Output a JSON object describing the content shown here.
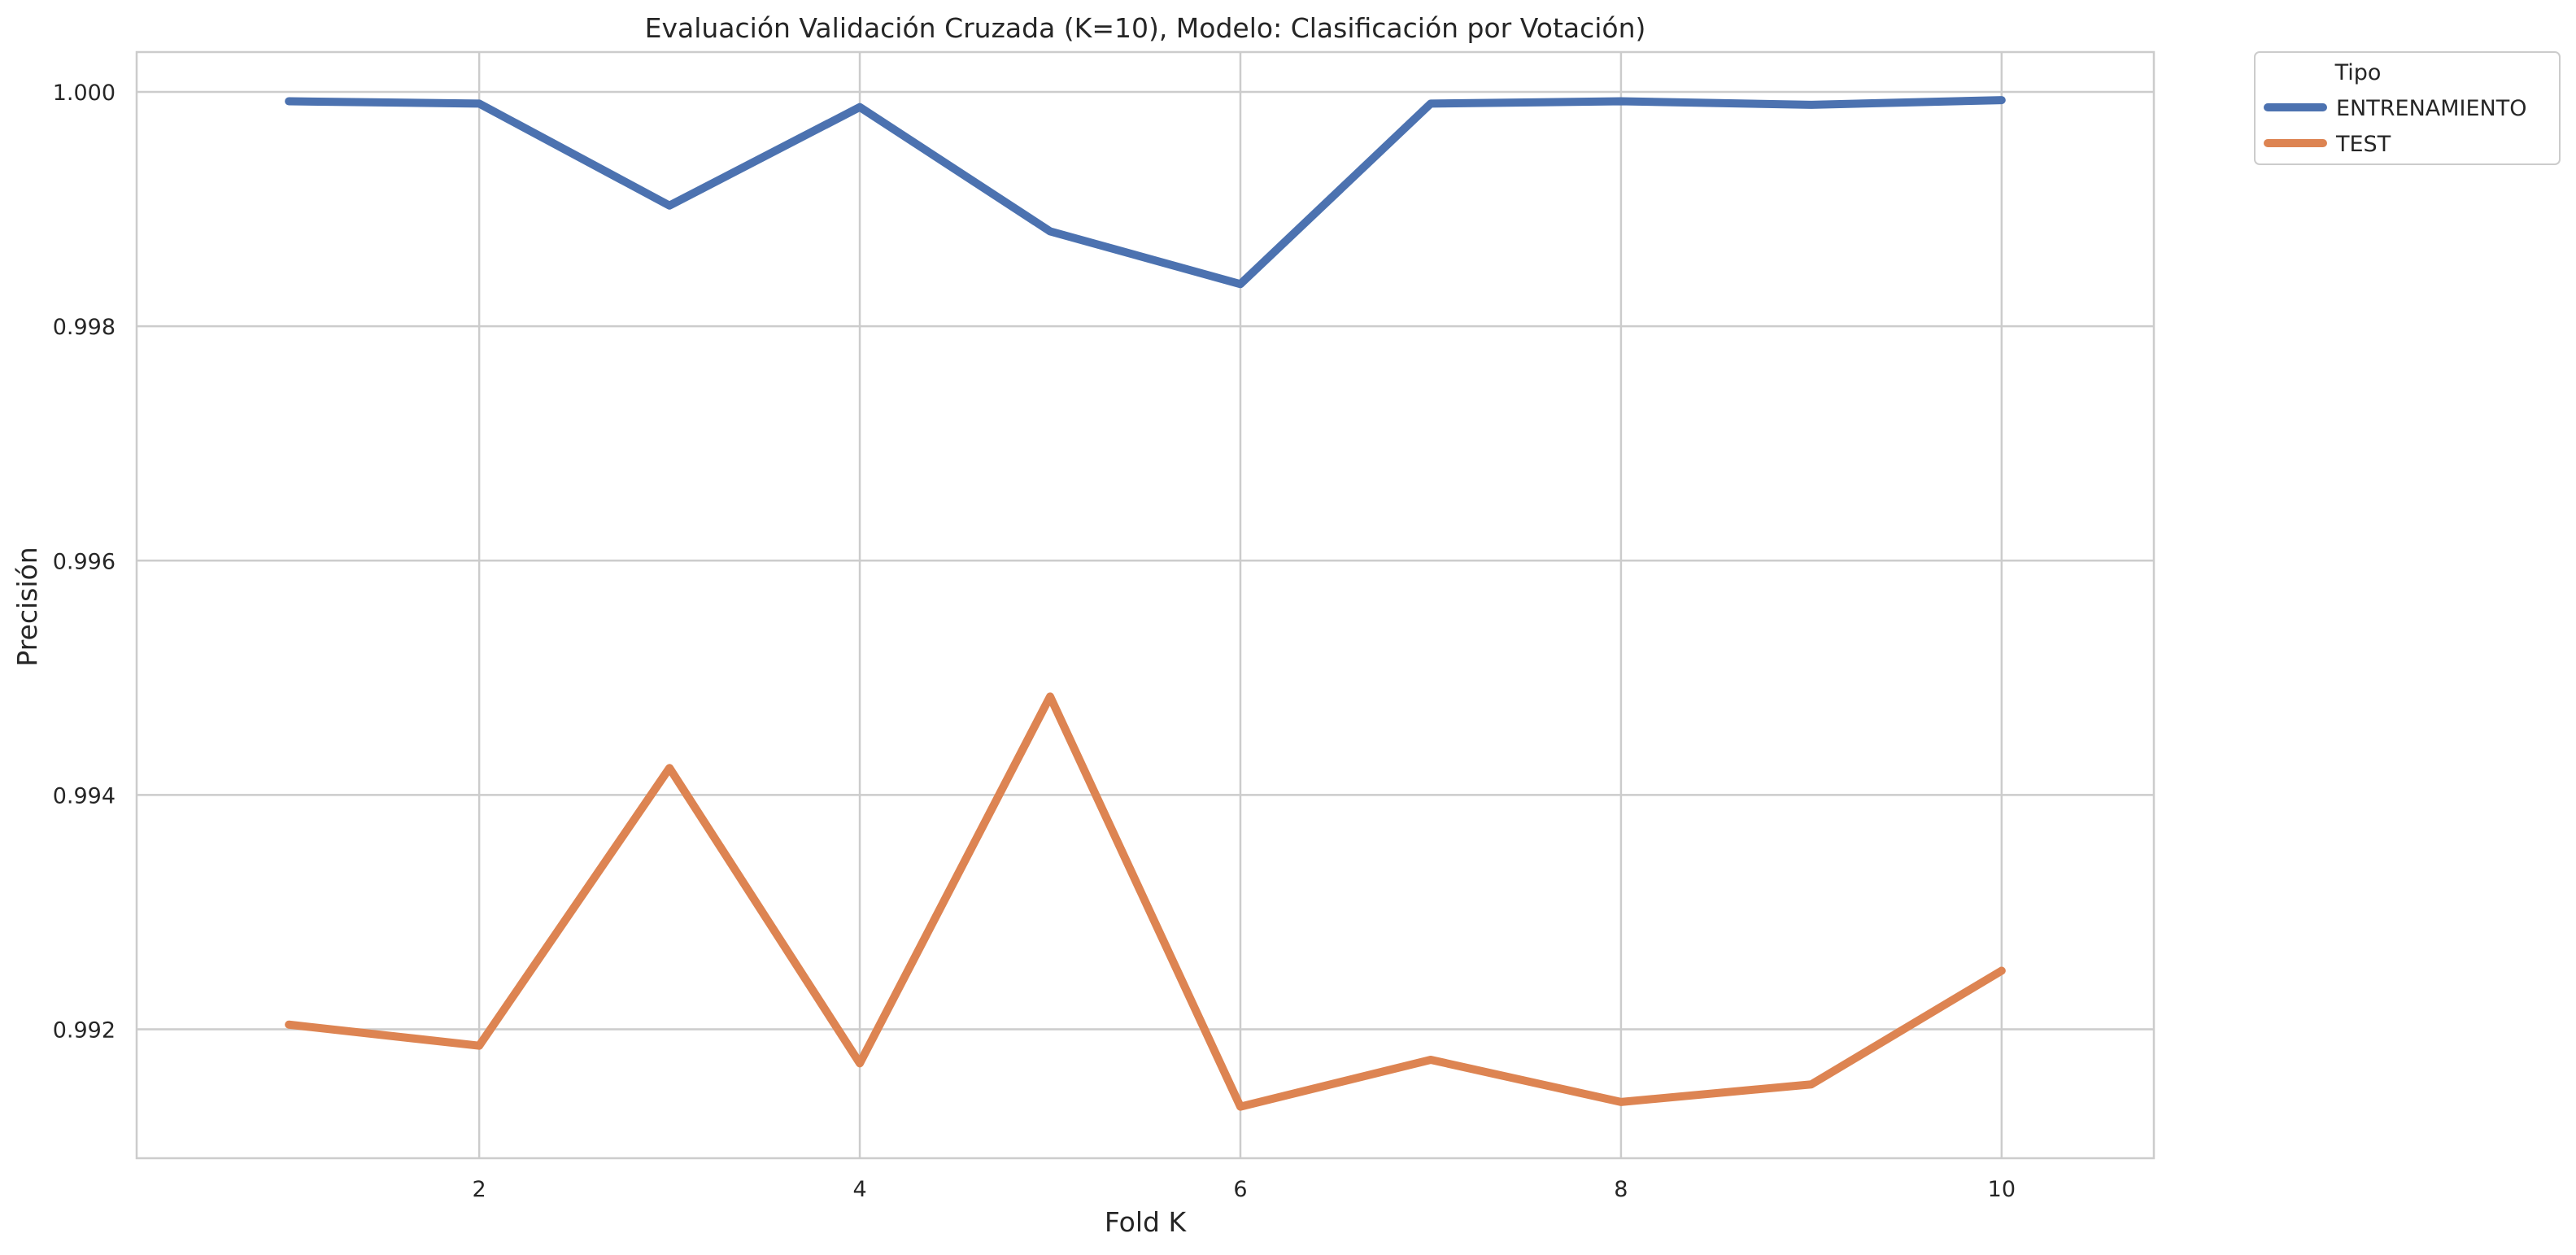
{
  "chart_data": {
    "type": "line",
    "title": "Evaluación Validación Cruzada (K=10), Modelo: Clasificación por Votación)",
    "xlabel": "Fold K",
    "ylabel": "Precisión",
    "x": [
      1,
      2,
      3,
      4,
      5,
      6,
      7,
      8,
      9,
      10
    ],
    "xlim": [
      0.2,
      10.8
    ],
    "ylim": [
      0.9909,
      1.00034
    ],
    "x_ticks": [
      2,
      4,
      6,
      8,
      10
    ],
    "x_tick_labels": [
      "2",
      "4",
      "6",
      "8",
      "10"
    ],
    "y_ticks": [
      0.992,
      0.994,
      0.996,
      0.998,
      1.0
    ],
    "y_tick_labels": [
      "0.992",
      "0.994",
      "0.996",
      "0.998",
      "1.000"
    ],
    "grid": true,
    "legend": {
      "title": "Tipo",
      "placement": "outside-top-right"
    },
    "series": [
      {
        "name": "ENTRENAMIENTO",
        "color": "#4c72b0",
        "values": [
          0.99992,
          0.9999,
          0.99903,
          0.99987,
          0.99881,
          0.99836,
          0.9999,
          0.99992,
          0.99989,
          0.99993
        ]
      },
      {
        "name": "TEST",
        "color": "#dd8452",
        "values": [
          0.99204,
          0.99186,
          0.99423,
          0.99171,
          0.99484,
          0.99134,
          0.99174,
          0.99138,
          0.99153,
          0.9925
        ]
      }
    ]
  }
}
